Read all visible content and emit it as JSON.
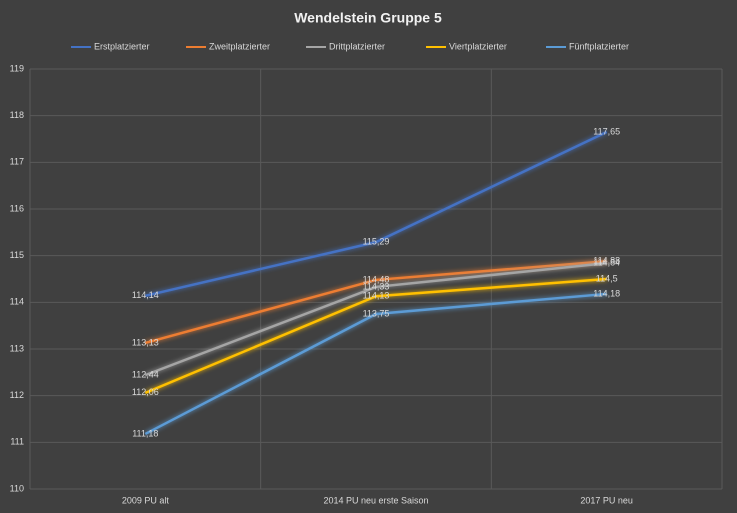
{
  "chart_data": {
    "type": "line",
    "title": "Wendelstein Gruppe 5",
    "categories": [
      "2009 PU alt",
      "2014 PU neu erste Saison",
      "2017 PU neu"
    ],
    "series": [
      {
        "name": "Erstplatzierter",
        "color": "#4472c4",
        "values": [
          114.14,
          115.29,
          117.65
        ],
        "value_labels": [
          "114,14",
          "115,29",
          "117,65"
        ]
      },
      {
        "name": "Zweitplatzierter",
        "color": "#ed7d31",
        "values": [
          113.13,
          114.48,
          114.88
        ],
        "value_labels": [
          "113,13",
          "114,48",
          "114,88"
        ]
      },
      {
        "name": "Drittplatzierter",
        "color": "#a5a5a5",
        "values": [
          112.44,
          114.33,
          114.84
        ],
        "value_labels": [
          "112,44",
          "114,33",
          "114,84"
        ]
      },
      {
        "name": "Viertplatzierter",
        "color": "#ffc000",
        "values": [
          112.06,
          114.13,
          114.5
        ],
        "value_labels": [
          "112,06",
          "114,13",
          "114,5"
        ]
      },
      {
        "name": "Fünftplatzierter",
        "color": "#5b9bd5",
        "values": [
          111.18,
          113.75,
          114.18
        ],
        "value_labels": [
          "111,18",
          "113,75",
          "114,18"
        ]
      }
    ],
    "ylim": [
      110,
      119
    ],
    "yticks": [
      110,
      111,
      112,
      113,
      114,
      115,
      116,
      117,
      118,
      119
    ],
    "grid": true
  }
}
